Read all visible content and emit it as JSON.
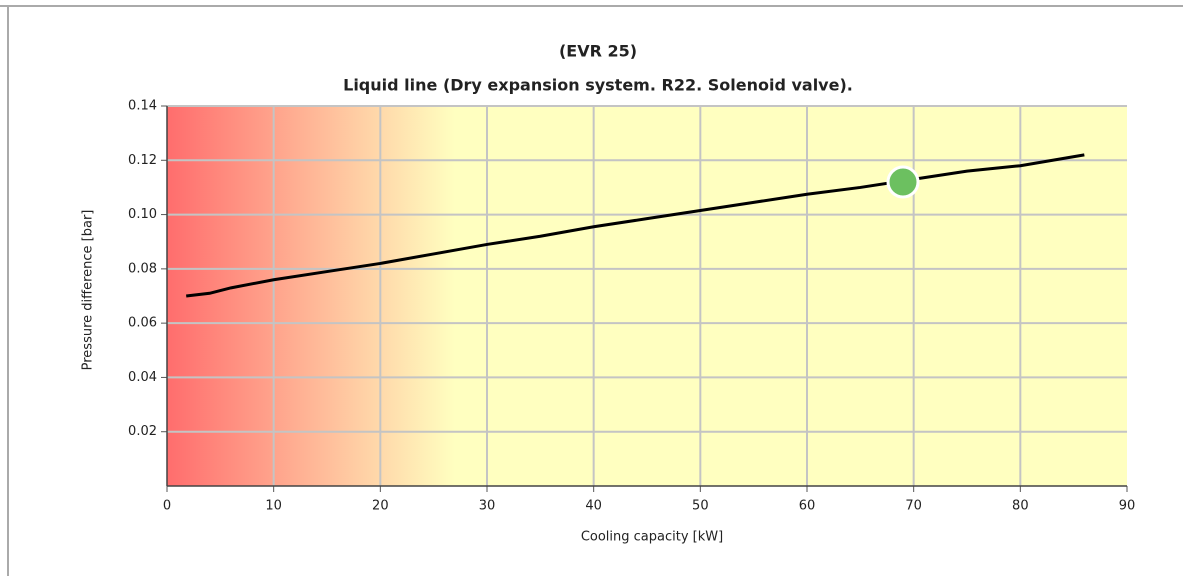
{
  "chart_data": {
    "type": "line",
    "title": "(EVR 25)",
    "subtitle": "Liquid line (Dry expansion system. R22. Solenoid valve).",
    "x_label": "Cooling capacity [kW]",
    "y_label": "Pressure difference [bar]",
    "x": [
      1.8,
      4,
      6,
      10,
      15,
      20,
      25,
      30,
      35,
      40,
      45,
      50,
      55,
      60,
      65,
      70,
      75,
      80,
      86
    ],
    "values": [
      0.07,
      0.071,
      0.073,
      0.076,
      0.079,
      0.082,
      0.0855,
      0.089,
      0.092,
      0.0955,
      0.0985,
      0.1015,
      0.1045,
      0.1075,
      0.11,
      0.113,
      0.116,
      0.118,
      0.122
    ],
    "color": "#000000",
    "marker": {
      "x": 69,
      "y": 0.112,
      "color": "#6cc060"
    },
    "xlim": [
      0,
      90
    ],
    "xticks": [
      0,
      10,
      20,
      30,
      40,
      50,
      60,
      70,
      80,
      90
    ],
    "ylim": [
      0,
      0.14
    ],
    "yticks": [
      0.02,
      0.04,
      0.06,
      0.08,
      {
        "value": 0.1,
        "label": "0.10"
      },
      0.12,
      0.14
    ],
    "grid": true
  }
}
